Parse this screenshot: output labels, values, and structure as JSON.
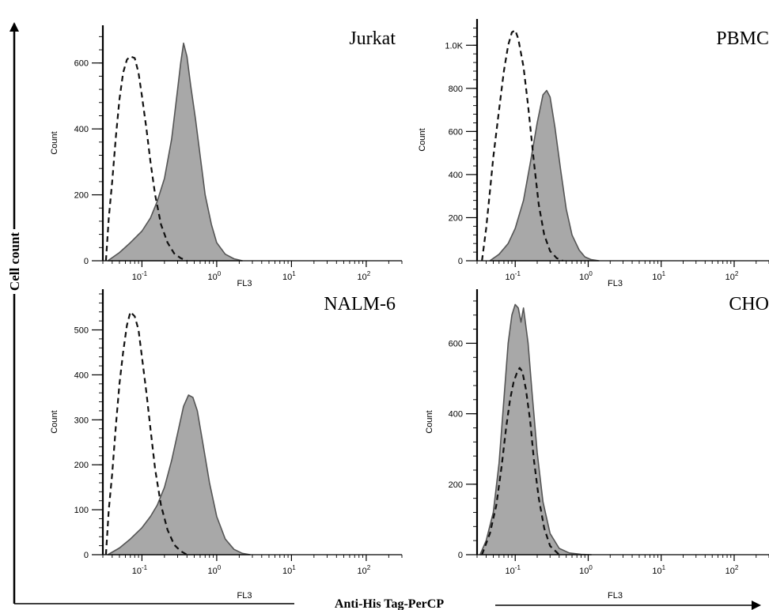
{
  "figure": {
    "y_axis_label": "Cell count",
    "x_axis_label": "Anti-His Tag-PerCP"
  },
  "colors": {
    "fill": "#a8a8a8",
    "stroke": "#555555",
    "dashed": "#111111",
    "axis": "#000000"
  },
  "chart_data": [
    {
      "type": "area",
      "title": "Jurkat",
      "xlabel": "FL3",
      "ylabel": "Count",
      "xscale": "log",
      "xlim": [
        0.03,
        300
      ],
      "ylim": [
        0,
        700
      ],
      "yticks": [
        0,
        200,
        400,
        600
      ],
      "ytick_labels": [
        "0",
        "200",
        "400",
        "600"
      ],
      "xticks": [
        0.1,
        1,
        10,
        100
      ],
      "xtick_labels": [
        [
          "10",
          "-1"
        ],
        [
          "10",
          "0"
        ],
        [
          "10",
          "1"
        ],
        [
          "10",
          "2"
        ]
      ],
      "series": [
        {
          "style": "filled",
          "x": [
            0.035,
            0.05,
            0.07,
            0.1,
            0.13,
            0.16,
            0.2,
            0.25,
            0.3,
            0.33,
            0.36,
            0.4,
            0.45,
            0.52,
            0.6,
            0.7,
            0.85,
            1.0,
            1.3,
            1.7,
            2.2
          ],
          "y": [
            0,
            25,
            55,
            90,
            130,
            180,
            250,
            370,
            520,
            600,
            660,
            620,
            530,
            430,
            320,
            200,
            110,
            55,
            20,
            6,
            0
          ]
        },
        {
          "style": "dashed",
          "x": [
            0.033,
            0.036,
            0.04,
            0.045,
            0.05,
            0.056,
            0.063,
            0.07,
            0.08,
            0.09,
            0.1,
            0.115,
            0.13,
            0.15,
            0.18,
            0.22,
            0.27,
            0.33,
            0.4
          ],
          "y": [
            0,
            130,
            240,
            380,
            490,
            570,
            610,
            620,
            615,
            570,
            500,
            400,
            300,
            200,
            110,
            55,
            22,
            8,
            0
          ]
        }
      ]
    },
    {
      "type": "area",
      "title": "PBMC",
      "xlabel": "FL3",
      "ylabel": "Count",
      "xscale": "log",
      "xlim": [
        0.03,
        300
      ],
      "ylim": [
        0,
        1100
      ],
      "yticks": [
        0,
        200,
        400,
        600,
        800,
        1000
      ],
      "ytick_labels": [
        "0",
        "200",
        "400",
        "600",
        "800",
        "1.0K"
      ],
      "xticks": [
        0.1,
        1,
        10,
        100
      ],
      "xtick_labels": [
        [
          "10",
          "-1"
        ],
        [
          "10",
          "0"
        ],
        [
          "10",
          "1"
        ],
        [
          "10",
          "2"
        ]
      ],
      "series": [
        {
          "style": "filled",
          "x": [
            0.045,
            0.06,
            0.08,
            0.1,
            0.13,
            0.16,
            0.2,
            0.24,
            0.27,
            0.3,
            0.35,
            0.42,
            0.5,
            0.6,
            0.75,
            0.9,
            1.1,
            1.4
          ],
          "y": [
            0,
            30,
            80,
            150,
            280,
            450,
            640,
            770,
            790,
            760,
            620,
            420,
            240,
            120,
            50,
            18,
            5,
            0
          ]
        },
        {
          "style": "dashed",
          "x": [
            0.035,
            0.04,
            0.045,
            0.05,
            0.06,
            0.07,
            0.08,
            0.09,
            0.1,
            0.11,
            0.13,
            0.15,
            0.18,
            0.21,
            0.25,
            0.3,
            0.37,
            0.45
          ],
          "y": [
            0,
            150,
            320,
            480,
            700,
            880,
            1000,
            1060,
            1070,
            1030,
            900,
            720,
            460,
            260,
            120,
            45,
            12,
            0
          ]
        }
      ]
    },
    {
      "type": "area",
      "title": "NALM-6",
      "xlabel": "FL3",
      "ylabel": "Count",
      "xscale": "log",
      "xlim": [
        0.03,
        300
      ],
      "ylim": [
        0,
        580
      ],
      "yticks": [
        0,
        100,
        200,
        300,
        400,
        500
      ],
      "ytick_labels": [
        "0",
        "100",
        "200",
        "300",
        "400",
        "500"
      ],
      "xticks": [
        0.1,
        1,
        10,
        100
      ],
      "xtick_labels": [
        [
          "10",
          "-1"
        ],
        [
          "10",
          "0"
        ],
        [
          "10",
          "1"
        ],
        [
          "10",
          "2"
        ]
      ],
      "series": [
        {
          "style": "filled",
          "x": [
            0.035,
            0.05,
            0.07,
            0.1,
            0.13,
            0.16,
            0.2,
            0.25,
            0.3,
            0.36,
            0.42,
            0.48,
            0.55,
            0.65,
            0.8,
            1.0,
            1.3,
            1.7,
            2.2,
            2.8
          ],
          "y": [
            0,
            15,
            35,
            60,
            85,
            110,
            150,
            210,
            270,
            330,
            355,
            350,
            320,
            250,
            160,
            85,
            35,
            12,
            3,
            0
          ]
        },
        {
          "style": "dashed",
          "x": [
            0.033,
            0.036,
            0.04,
            0.045,
            0.05,
            0.056,
            0.063,
            0.07,
            0.08,
            0.09,
            0.1,
            0.115,
            0.13,
            0.15,
            0.18,
            0.22,
            0.27,
            0.33,
            0.4
          ],
          "y": [
            0,
            100,
            180,
            290,
            380,
            450,
            510,
            540,
            530,
            500,
            440,
            360,
            280,
            190,
            110,
            55,
            22,
            8,
            0
          ]
        }
      ]
    },
    {
      "type": "area",
      "title": "CHO",
      "xlabel": "FL3",
      "ylabel": "Count",
      "xscale": "log",
      "xlim": [
        0.03,
        300
      ],
      "ylim": [
        0,
        740
      ],
      "yticks": [
        0,
        200,
        400,
        600
      ],
      "ytick_labels": [
        "0",
        "200",
        "400",
        "600"
      ],
      "xticks": [
        0.1,
        1,
        10,
        100
      ],
      "xtick_labels": [
        [
          "10",
          "-1"
        ],
        [
          "10",
          "0"
        ],
        [
          "10",
          "1"
        ],
        [
          "10",
          "2"
        ]
      ],
      "series": [
        {
          "style": "filled",
          "x": [
            0.033,
            0.04,
            0.05,
            0.06,
            0.07,
            0.08,
            0.09,
            0.1,
            0.11,
            0.12,
            0.13,
            0.15,
            0.17,
            0.2,
            0.24,
            0.3,
            0.4,
            0.55,
            0.8,
            1.1
          ],
          "y": [
            0,
            40,
            120,
            260,
            440,
            600,
            680,
            710,
            700,
            660,
            700,
            600,
            460,
            290,
            150,
            60,
            18,
            5,
            1,
            0
          ]
        },
        {
          "style": "dashed",
          "x": [
            0.035,
            0.045,
            0.055,
            0.065,
            0.075,
            0.085,
            0.095,
            0.105,
            0.115,
            0.125,
            0.14,
            0.16,
            0.18,
            0.21,
            0.25,
            0.3,
            0.4
          ],
          "y": [
            0,
            60,
            140,
            250,
            360,
            440,
            490,
            515,
            530,
            520,
            470,
            380,
            270,
            160,
            75,
            25,
            0
          ]
        }
      ]
    }
  ]
}
